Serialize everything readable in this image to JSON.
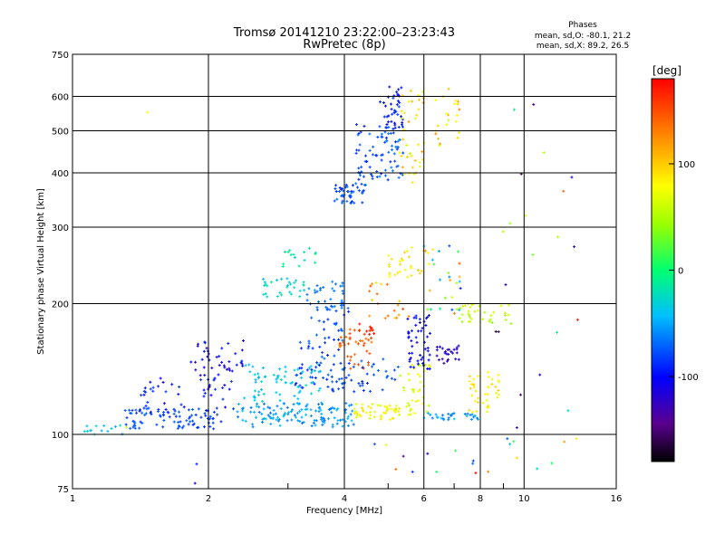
{
  "chart_data": {
    "type": "scatter",
    "title": "Tromsø 20141210 23:22:00–23:23:43",
    "subtitle": "RwPretec (8p)",
    "xlabel": "Frequency [MHz]",
    "ylabel": "Stationary phase Virtual Height [km]",
    "x_scale": "log",
    "y_scale": "log",
    "xlim": [
      1,
      16
    ],
    "ylim": [
      75,
      750
    ],
    "x_ticks": [
      1,
      2,
      4,
      6,
      8,
      10,
      16
    ],
    "y_ticks": [
      75,
      100,
      200,
      300,
      400,
      500,
      600,
      750
    ],
    "grid": true,
    "stats": {
      "heading": "Phases",
      "line_o": "mean, sd,O: -80.1, 21.2",
      "line_x": "mean, sd,X:  89.2, 26.5"
    },
    "colorbar": {
      "label": "[deg]",
      "range": [
        -180,
        180
      ],
      "ticks": [
        -100,
        0,
        100
      ],
      "colormap": "rainbow"
    },
    "clusters": [
      {
        "f": [
          1.05,
          1.3
        ],
        "h": [
          100,
          106
        ],
        "phase": [
          -50,
          -20
        ],
        "n": 14
      },
      {
        "f": [
          1.3,
          2.2
        ],
        "h": [
          103,
          115
        ],
        "phase": [
          -90,
          -70
        ],
        "n": 90
      },
      {
        "f": [
          1.4,
          2.3
        ],
        "h": [
          112,
          135
        ],
        "phase": [
          -110,
          -80
        ],
        "n": 45
      },
      {
        "f": [
          1.8,
          2.4
        ],
        "h": [
          135,
          165
        ],
        "phase": [
          -125,
          -90
        ],
        "n": 40
      },
      {
        "f": [
          2.3,
          4.2
        ],
        "h": [
          104,
          118
        ],
        "phase": [
          -70,
          -40
        ],
        "n": 130
      },
      {
        "f": [
          2.4,
          3.6
        ],
        "h": [
          118,
          145
        ],
        "phase": [
          -50,
          -20
        ],
        "n": 70
      },
      {
        "f": [
          2.6,
          3.3
        ],
        "h": [
          205,
          230
        ],
        "phase": [
          -40,
          -10
        ],
        "n": 30
      },
      {
        "f": [
          3.1,
          4.1
        ],
        "h": [
          125,
          200
        ],
        "phase": [
          -95,
          -65
        ],
        "n": 90
      },
      {
        "f": [
          3.3,
          4.0
        ],
        "h": [
          195,
          225
        ],
        "phase": [
          -75,
          -55
        ],
        "n": 30
      },
      {
        "f": [
          2.9,
          3.5
        ],
        "h": [
          240,
          270
        ],
        "phase": [
          -30,
          0
        ],
        "n": 15
      },
      {
        "f": [
          3.8,
          4.5
        ],
        "h": [
          340,
          380
        ],
        "phase": [
          -95,
          -65
        ],
        "n": 45
      },
      {
        "f": [
          4.2,
          5.4
        ],
        "h": [
          380,
          520
        ],
        "phase": [
          -95,
          -60
        ],
        "n": 80
      },
      {
        "f": [
          4.8,
          5.4
        ],
        "h": [
          500,
          640
        ],
        "phase": [
          -110,
          -80
        ],
        "n": 40
      },
      {
        "f": [
          5.3,
          6.0
        ],
        "h": [
          380,
          620
        ],
        "phase": [
          60,
          120
        ],
        "n": 40
      },
      {
        "f": [
          6.3,
          7.2
        ],
        "h": [
          460,
          650
        ],
        "phase": [
          60,
          130
        ],
        "n": 22
      },
      {
        "f": [
          3.9,
          4.6
        ],
        "h": [
          140,
          175
        ],
        "phase": [
          130,
          160
        ],
        "n": 40
      },
      {
        "f": [
          4.3,
          4.8
        ],
        "h": [
          170,
          180
        ],
        "phase": [
          160,
          175
        ],
        "n": 10
      },
      {
        "f": [
          4.2,
          5.3
        ],
        "h": [
          108,
          118
        ],
        "phase": [
          60,
          95
        ],
        "n": 50
      },
      {
        "f": [
          4.0,
          5.3
        ],
        "h": [
          125,
          150
        ],
        "phase": [
          -90,
          -70
        ],
        "n": 30
      },
      {
        "f": [
          5.3,
          6.2
        ],
        "h": [
          110,
          145
        ],
        "phase": [
          50,
          80
        ],
        "n": 40
      },
      {
        "f": [
          5.5,
          6.2
        ],
        "h": [
          140,
          190
        ],
        "phase": [
          -110,
          -90
        ],
        "n": 50
      },
      {
        "f": [
          6.4,
          7.2
        ],
        "h": [
          145,
          160
        ],
        "phase": [
          -130,
          -110
        ],
        "n": 25
      },
      {
        "f": [
          6.0,
          8.0
        ],
        "h": [
          108,
          112
        ],
        "phase": [
          -70,
          -40
        ],
        "n": 30
      },
      {
        "f": [
          7.5,
          8.8
        ],
        "h": [
          112,
          140
        ],
        "phase": [
          70,
          100
        ],
        "n": 40
      },
      {
        "f": [
          7.0,
          9.4
        ],
        "h": [
          180,
          200
        ],
        "phase": [
          40,
          70
        ],
        "n": 35
      },
      {
        "f": [
          5.0,
          6.3
        ],
        "h": [
          230,
          270
        ],
        "phase": [
          70,
          100
        ],
        "n": 30
      },
      {
        "f": [
          4.5,
          5.6
        ],
        "h": [
          185,
          225
        ],
        "phase": [
          90,
          150
        ],
        "n": 20
      },
      {
        "f": [
          6.0,
          7.5
        ],
        "h": [
          190,
          280
        ],
        "phase": [
          -100,
          150
        ],
        "n": 25
      },
      {
        "f": [
          8.5,
          13.5
        ],
        "h": [
          80,
          600
        ],
        "phase": [
          -180,
          180
        ],
        "n": 30
      },
      {
        "f": [
          4.5,
          8.5
        ],
        "h": [
          80,
          95
        ],
        "phase": [
          -180,
          180
        ],
        "n": 12
      },
      {
        "f": [
          1.2,
          1.9
        ],
        "h": [
          75,
          700
        ],
        "phase": [
          -180,
          180
        ],
        "n": 4
      }
    ]
  }
}
